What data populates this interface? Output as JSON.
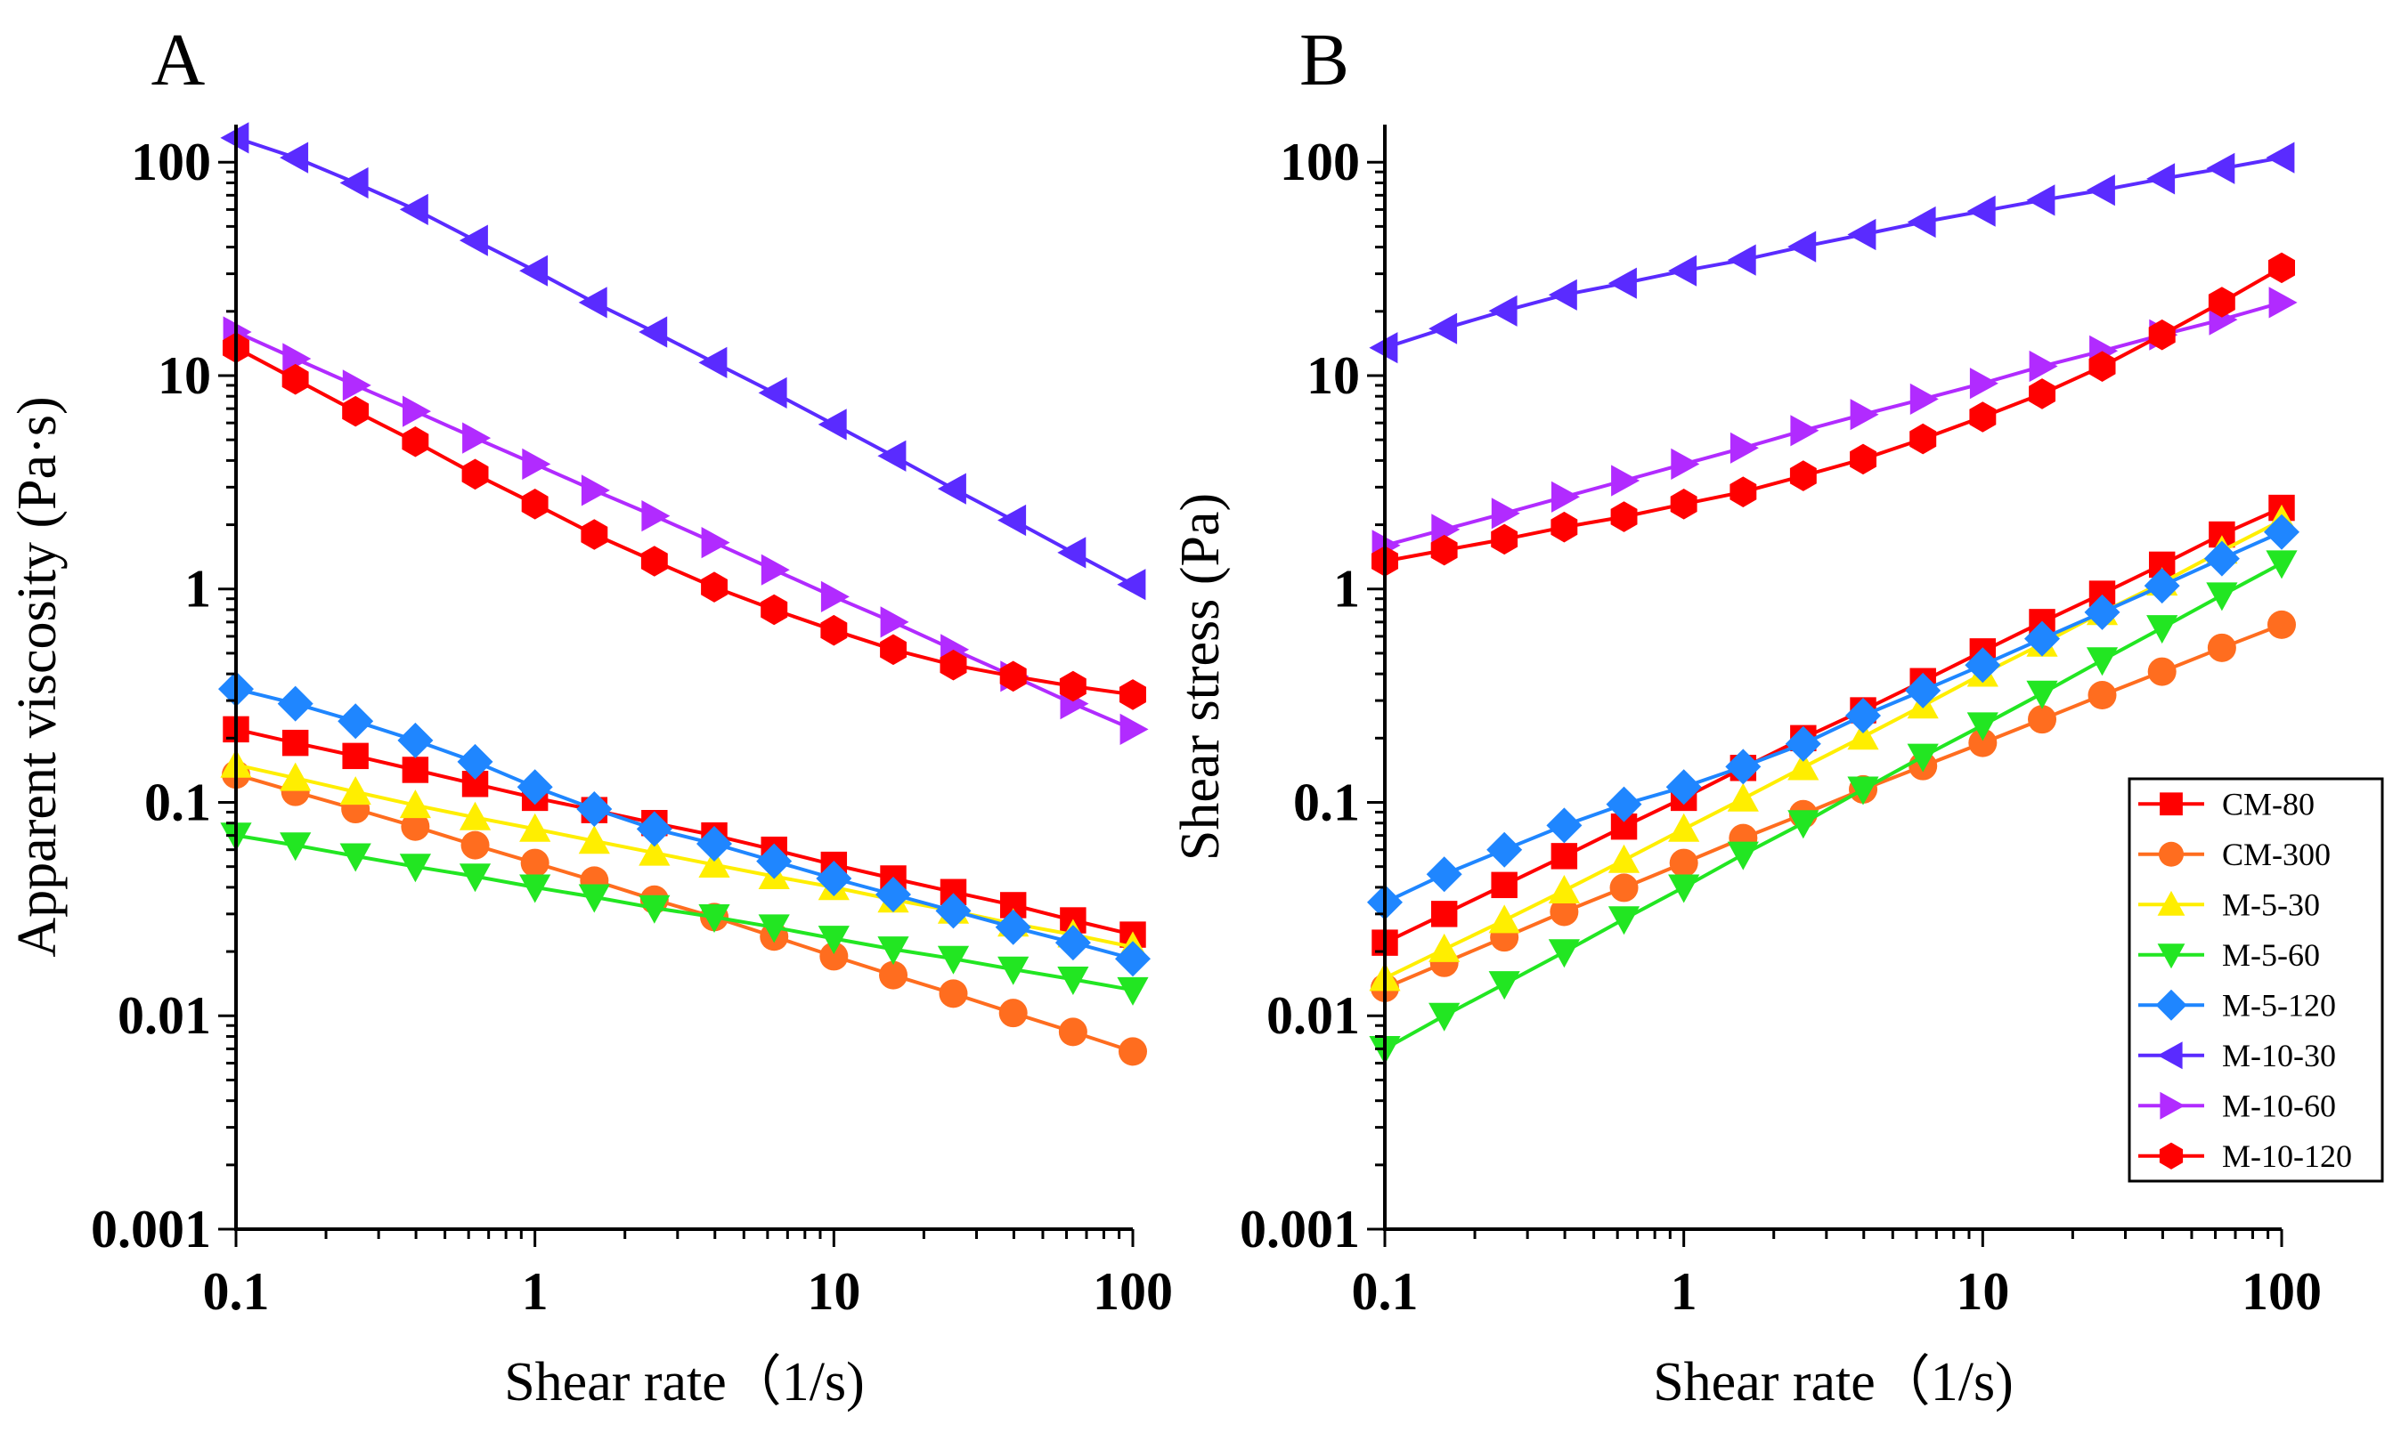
{
  "chart_data": [
    {
      "type": "line",
      "panel": "A",
      "title": "",
      "xlabel": "Shear rate（1/s)",
      "ylabel": "Apparent viscosity (Pa·s)",
      "xscale": "log",
      "yscale": "log",
      "xlim": [
        0.1,
        100
      ],
      "ylim": [
        0.001,
        150
      ],
      "x_ticks": [
        0.1,
        1,
        10,
        100
      ],
      "x_tick_labels": [
        "0.1",
        "1",
        "10",
        "100"
      ],
      "y_ticks": [
        0.001,
        0.01,
        0.1,
        1,
        10,
        100
      ],
      "y_tick_labels": [
        "0.001",
        "0.01",
        "0.1",
        "1",
        "10",
        "100"
      ],
      "grid": false,
      "x": [
        0.1,
        0.158,
        0.251,
        0.398,
        0.631,
        1,
        1.58,
        2.51,
        3.98,
        6.31,
        10,
        15.8,
        25.1,
        39.8,
        63.1,
        100
      ],
      "series": [
        {
          "name": "CM-80",
          "values": [
            0.22,
            0.19,
            0.165,
            0.142,
            0.122,
            0.105,
            0.092,
            0.08,
            0.07,
            0.06,
            0.051,
            0.044,
            0.038,
            0.033,
            0.028,
            0.024
          ]
        },
        {
          "name": "CM-300",
          "values": [
            0.135,
            0.112,
            0.093,
            0.077,
            0.063,
            0.052,
            0.043,
            0.035,
            0.029,
            0.0235,
            0.019,
            0.0155,
            0.0127,
            0.0103,
            0.0084,
            0.0068
          ]
        },
        {
          "name": "M-5-30",
          "values": [
            0.15,
            0.13,
            0.112,
            0.097,
            0.085,
            0.075,
            0.066,
            0.058,
            0.051,
            0.045,
            0.04,
            0.035,
            0.031,
            0.027,
            0.024,
            0.021
          ]
        },
        {
          "name": "M-5-60",
          "values": [
            0.07,
            0.063,
            0.056,
            0.05,
            0.045,
            0.04,
            0.036,
            0.032,
            0.029,
            0.026,
            0.023,
            0.0205,
            0.0185,
            0.0165,
            0.0148,
            0.0132
          ]
        },
        {
          "name": "M-5-120",
          "values": [
            0.34,
            0.29,
            0.24,
            0.195,
            0.155,
            0.118,
            0.093,
            0.075,
            0.064,
            0.053,
            0.044,
            0.037,
            0.031,
            0.026,
            0.022,
            0.0185
          ]
        },
        {
          "name": "M-10-30",
          "values": [
            130,
            105,
            80,
            60,
            43,
            31,
            22,
            16,
            11.5,
            8.3,
            5.9,
            4.2,
            2.95,
            2.1,
            1.48,
            1.05
          ]
        },
        {
          "name": "M-10-60",
          "values": [
            16,
            12,
            9,
            6.8,
            5.1,
            3.85,
            2.9,
            2.2,
            1.65,
            1.23,
            0.92,
            0.7,
            0.52,
            0.39,
            0.29,
            0.22
          ]
        },
        {
          "name": "M-10-120",
          "values": [
            13.5,
            9.6,
            6.8,
            4.9,
            3.45,
            2.5,
            1.8,
            1.35,
            1.02,
            0.8,
            0.64,
            0.52,
            0.44,
            0.39,
            0.35,
            0.32
          ]
        }
      ]
    },
    {
      "type": "line",
      "panel": "B",
      "title": "",
      "xlabel": "Shear rate（1/s)",
      "ylabel": "Shear stress (Pa)",
      "xscale": "log",
      "yscale": "log",
      "xlim": [
        0.1,
        100
      ],
      "ylim": [
        0.001,
        150
      ],
      "x_ticks": [
        0.1,
        1,
        10,
        100
      ],
      "x_tick_labels": [
        "0.1",
        "1",
        "10",
        "100"
      ],
      "y_ticks": [
        0.001,
        0.01,
        0.1,
        1,
        10,
        100
      ],
      "y_tick_labels": [
        "0.001",
        "0.01",
        "0.1",
        "1",
        "10",
        "100"
      ],
      "grid": false,
      "legend_position": "bottom-right",
      "x": [
        0.1,
        0.158,
        0.251,
        0.398,
        0.631,
        1,
        1.58,
        2.51,
        3.98,
        6.31,
        10,
        15.8,
        25.1,
        39.8,
        63.1,
        100
      ],
      "series": [
        {
          "name": "CM-80",
          "values": [
            0.022,
            0.03,
            0.041,
            0.056,
            0.077,
            0.105,
            0.145,
            0.2,
            0.27,
            0.37,
            0.51,
            0.7,
            0.95,
            1.3,
            1.8,
            2.4
          ]
        },
        {
          "name": "CM-300",
          "values": [
            0.0135,
            0.0177,
            0.0233,
            0.0307,
            0.0398,
            0.052,
            0.068,
            0.088,
            0.115,
            0.148,
            0.19,
            0.245,
            0.318,
            0.41,
            0.53,
            0.68
          ]
        },
        {
          "name": "M-5-30",
          "values": [
            0.015,
            0.0205,
            0.028,
            0.0386,
            0.0536,
            0.075,
            0.104,
            0.146,
            0.203,
            0.284,
            0.4,
            0.553,
            0.778,
            1.07,
            1.51,
            2.1
          ]
        },
        {
          "name": "M-5-60",
          "values": [
            0.007,
            0.01,
            0.0141,
            0.0199,
            0.0284,
            0.04,
            0.057,
            0.08,
            0.115,
            0.164,
            0.23,
            0.324,
            0.464,
            0.657,
            0.934,
            1.32
          ]
        },
        {
          "name": "M-5-120",
          "values": [
            0.034,
            0.046,
            0.06,
            0.078,
            0.098,
            0.118,
            0.147,
            0.188,
            0.255,
            0.334,
            0.44,
            0.585,
            0.778,
            1.035,
            1.388,
            1.85
          ]
        },
        {
          "name": "M-10-30",
          "values": [
            13.5,
            16.6,
            20.1,
            23.9,
            27.1,
            31,
            34.8,
            40.2,
            45.8,
            52.4,
            59,
            66.4,
            74,
            83.6,
            93.4,
            105
          ]
        },
        {
          "name": "M-10-60",
          "values": [
            1.6,
            1.9,
            2.26,
            2.7,
            3.22,
            3.85,
            4.58,
            5.52,
            6.57,
            7.76,
            9.2,
            11.06,
            13.05,
            15.52,
            18.3,
            22
          ]
        },
        {
          "name": "M-10-120",
          "values": [
            1.35,
            1.52,
            1.71,
            1.95,
            2.18,
            2.5,
            2.85,
            3.39,
            4.06,
            5.05,
            6.4,
            8.22,
            11.04,
            15.52,
            22.09,
            32
          ]
        }
      ]
    }
  ],
  "series_styles": [
    {
      "name": "CM-80",
      "color": "#ff0000",
      "marker": "square"
    },
    {
      "name": "CM-300",
      "color": "#ff6d1f",
      "marker": "circle"
    },
    {
      "name": "M-5-30",
      "color": "#ffee00",
      "marker": "triangle-up"
    },
    {
      "name": "M-5-60",
      "color": "#22e622",
      "marker": "triangle-down"
    },
    {
      "name": "M-5-120",
      "color": "#1f86ff",
      "marker": "diamond"
    },
    {
      "name": "M-10-30",
      "color": "#5a2bff",
      "marker": "triangle-left"
    },
    {
      "name": "M-10-60",
      "color": "#b12bff",
      "marker": "triangle-right"
    },
    {
      "name": "M-10-120",
      "color": "#ff0000",
      "marker": "hexagon"
    }
  ],
  "legend": {
    "entries": [
      "CM-80",
      "CM-300",
      "M-5-30",
      "M-5-60",
      "M-5-120",
      "M-10-30",
      "M-10-60",
      "M-10-120"
    ]
  }
}
